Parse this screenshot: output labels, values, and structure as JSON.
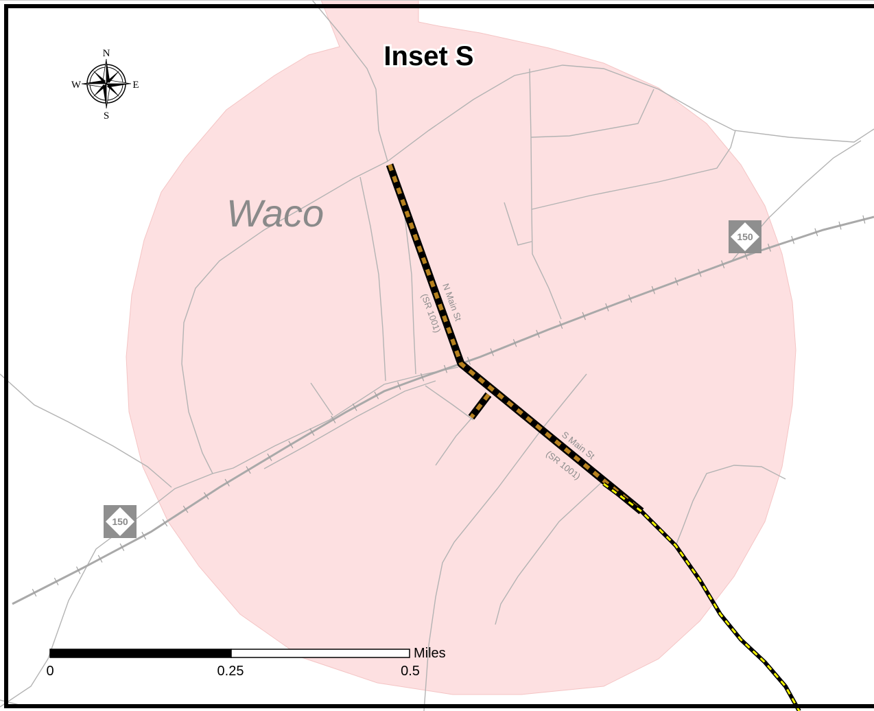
{
  "title": "Inset S",
  "town_label": "Waco",
  "roads": {
    "north": {
      "name": "N Main St",
      "route": "(SR 1001)"
    },
    "south": {
      "name": "S Main St",
      "route": "(SR 1001)"
    }
  },
  "shields": [
    {
      "route": "150"
    },
    {
      "route": "150"
    }
  ],
  "compass": {
    "n": "N",
    "s": "S",
    "e": "E",
    "w": "W"
  },
  "scale_bar": {
    "ticks": [
      "0",
      "0.25",
      "0.5"
    ],
    "unit": "Miles"
  },
  "colors": {
    "town_area": "#fde0e1",
    "road": "#b3b3b3",
    "highlight_dash": "#b5801e",
    "yellow_dash": "#f2f200"
  }
}
